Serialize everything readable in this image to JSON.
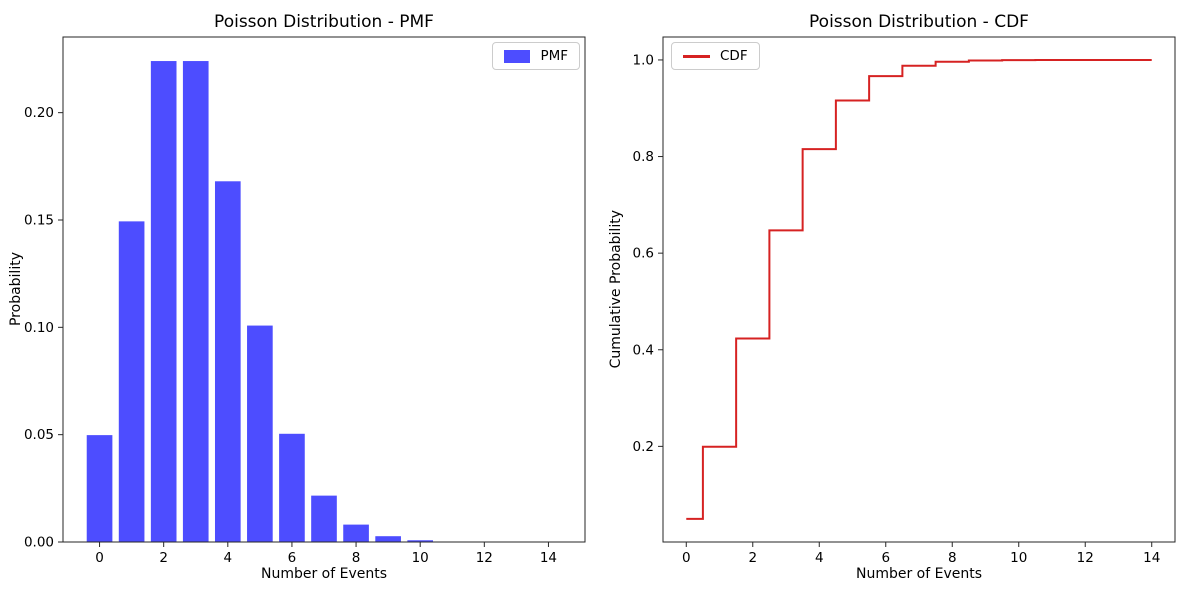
{
  "figure": {
    "background": "#ffffff"
  },
  "chart_data": [
    {
      "type": "bar",
      "title": "Poisson Distribution - PMF",
      "xlabel": "Number of Events",
      "ylabel": "Probability",
      "legend": {
        "position": "upper-right",
        "entries": [
          {
            "label": "PMF",
            "marker": "patch",
            "color": "#4d4dff"
          }
        ]
      },
      "color": "#4d4dff",
      "bar_width": 0.8,
      "x": [
        0,
        1,
        2,
        3,
        4,
        5,
        6,
        7,
        8,
        9,
        10,
        11,
        12,
        13,
        14
      ],
      "values": [
        0.049787,
        0.149361,
        0.224042,
        0.224042,
        0.168031,
        0.100819,
        0.050409,
        0.021604,
        0.008102,
        0.002701,
        0.00081,
        0.000221,
        5.5e-05,
        1.3e-05,
        3e-06
      ],
      "xticks": [
        0,
        2,
        4,
        6,
        8,
        10,
        12,
        14
      ],
      "xtick_labels": [
        "0",
        "2",
        "4",
        "6",
        "8",
        "10",
        "12",
        "14"
      ],
      "yticks": [
        0.0,
        0.05,
        0.1,
        0.15,
        0.2
      ],
      "ytick_labels": [
        "0.00",
        "0.05",
        "0.10",
        "0.15",
        "0.20"
      ],
      "xlim": [
        -1.14,
        15.14
      ],
      "ylim": [
        0,
        0.235244
      ],
      "grid": false
    },
    {
      "type": "line",
      "step_style": "mid",
      "title": "Poisson Distribution - CDF",
      "xlabel": "Number of Events",
      "ylabel": "Cumulative Probability",
      "legend": {
        "position": "upper-left",
        "entries": [
          {
            "label": "CDF",
            "marker": "line",
            "color": "#d62222"
          }
        ]
      },
      "color": "#d62222",
      "line_width": 2,
      "x": [
        0,
        1,
        2,
        3,
        4,
        5,
        6,
        7,
        8,
        9,
        10,
        11,
        12,
        13,
        14
      ],
      "values": [
        0.049787,
        0.199148,
        0.42319,
        0.647232,
        0.815263,
        0.916082,
        0.966491,
        0.988095,
        0.996197,
        0.998898,
        0.999708,
        0.999929,
        0.999984,
        0.999997,
        0.999999
      ],
      "xticks": [
        0,
        2,
        4,
        6,
        8,
        10,
        12,
        14
      ],
      "xtick_labels": [
        "0",
        "2",
        "4",
        "6",
        "8",
        "10",
        "12",
        "14"
      ],
      "yticks": [
        0.2,
        0.4,
        0.6,
        0.8,
        1.0
      ],
      "ytick_labels": [
        "0.2",
        "0.4",
        "0.6",
        "0.8",
        "1.0"
      ],
      "xlim": [
        -0.7,
        14.7
      ],
      "ylim": [
        0.002,
        1.0475
      ],
      "grid": false
    }
  ]
}
